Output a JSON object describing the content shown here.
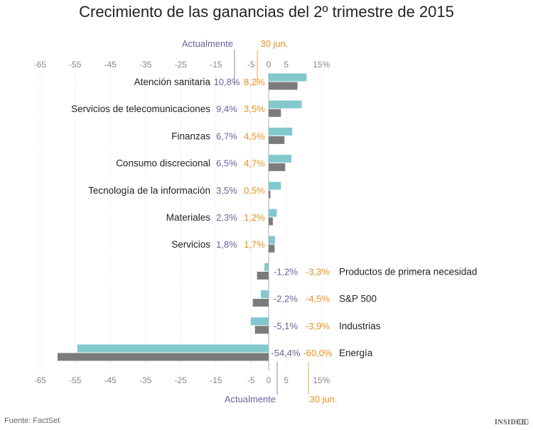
{
  "chart_data": {
    "type": "bar",
    "orientation": "horizontal",
    "title": "Crecimiento de las ganancias del 2º trimestre de 2015",
    "xlim": [
      -65,
      15
    ],
    "ticks": [
      -65,
      -55,
      -45,
      -35,
      -25,
      -15,
      -5,
      0,
      5,
      15
    ],
    "tick_labels": [
      "-65",
      "-55",
      "-45",
      "-35",
      "-25",
      "-15",
      "-5",
      "0",
      "5",
      "15%"
    ],
    "series": [
      {
        "name": "Actualmente",
        "color": "#82c8cd",
        "text_color": "#6a62a0"
      },
      {
        "name": "30 jun.",
        "color": "#7b7b7b",
        "text_color": "#e8901c"
      }
    ],
    "categories": [
      {
        "name": "Atención sanitaria",
        "current": 10.8,
        "june": 8.2,
        "current_label": "10,8%",
        "june_label": "8,2%"
      },
      {
        "name": "Servicios de telecomunicaciones",
        "current": 9.4,
        "june": 3.5,
        "current_label": "9,4%",
        "june_label": "3,5%"
      },
      {
        "name": "Finanzas",
        "current": 6.7,
        "june": 4.5,
        "current_label": "6,7%",
        "june_label": "4,5%"
      },
      {
        "name": "Consumo discrecional",
        "current": 6.5,
        "june": 4.7,
        "current_label": "6,5%",
        "june_label": "4,7%"
      },
      {
        "name": "Tecnología de la información",
        "current": 3.5,
        "june": 0.5,
        "current_label": "3,5%",
        "june_label": "0,5%"
      },
      {
        "name": "Materiales",
        "current": 2.3,
        "june": 1.2,
        "current_label": "2,3%",
        "june_label": "1,2%"
      },
      {
        "name": "Servicios",
        "current": 1.8,
        "june": 1.7,
        "current_label": "1,8%",
        "june_label": "1,7%"
      },
      {
        "name": "Productos de primera necesidad",
        "current": -1.2,
        "june": -3.3,
        "current_label": "-1,2%",
        "june_label": "-3,3%"
      },
      {
        "name": "S&P 500",
        "current": -2.2,
        "june": -4.5,
        "current_label": "-2,2%",
        "june_label": "-4,5%"
      },
      {
        "name": "Industrias",
        "current": -5.1,
        "june": -3.9,
        "current_label": "-5,1%",
        "june_label": "-3,9%"
      },
      {
        "name": "Energía",
        "current": -54.4,
        "june": -60.0,
        "current_label": "-54,4%",
        "june_label": "-60,0%"
      }
    ],
    "source": "Fuente: FactSet",
    "logo": "INSIDER"
  }
}
